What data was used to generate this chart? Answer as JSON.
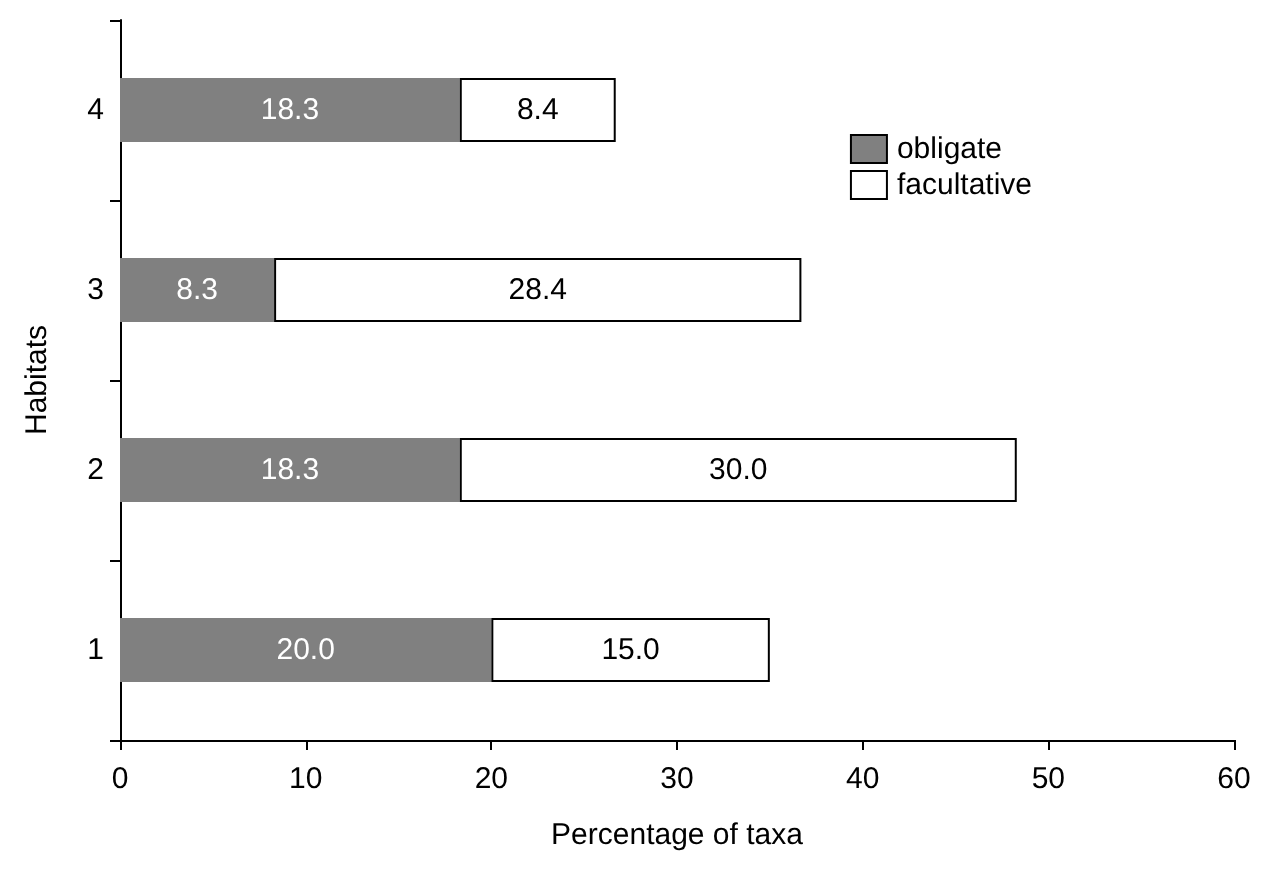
{
  "chart_data": {
    "type": "bar",
    "orientation": "horizontal",
    "stacked": true,
    "xlabel": "Percentage of taxa",
    "ylabel": "Habitats",
    "categories": [
      "4",
      "3",
      "2",
      "1"
    ],
    "series": [
      {
        "name": "obligate",
        "color": "#808080",
        "values": [
          18.3,
          8.3,
          18.3,
          20.0
        ],
        "value_labels": [
          "18.3",
          "8.3",
          "18.3",
          "20.0"
        ]
      },
      {
        "name": "facultative",
        "color": "#ffffff",
        "values": [
          8.4,
          28.4,
          30.0,
          15.0
        ],
        "value_labels": [
          "8.4",
          "28.4",
          "30.0",
          "15.0"
        ]
      }
    ],
    "xlim": [
      0,
      60
    ],
    "xticks": [
      0,
      10,
      20,
      30,
      40,
      50,
      60
    ],
    "grid": false,
    "legend": "top right"
  }
}
